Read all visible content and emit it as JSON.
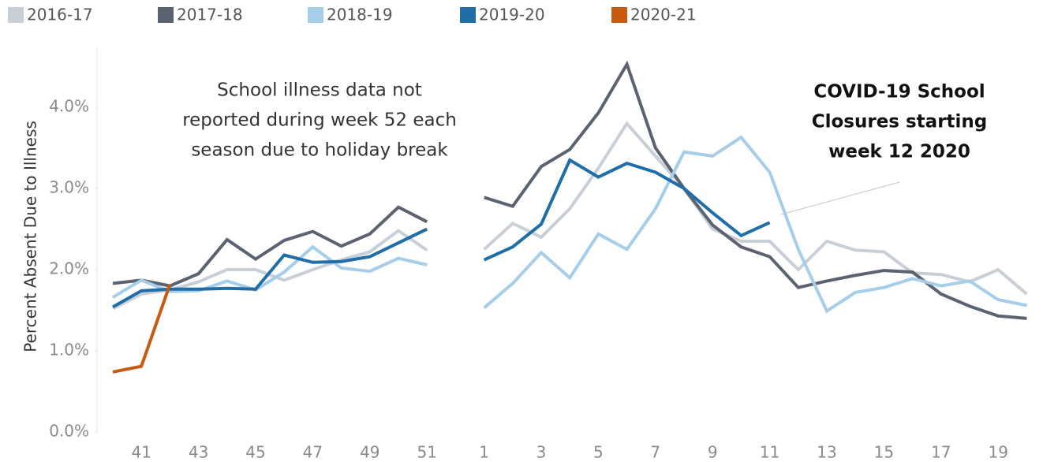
{
  "chart_data": {
    "type": "line",
    "y_label": "Percent Absent Due to Illness",
    "annotations": [
      {
        "lines": [
          "School illness data not",
          "reported during week 52 each",
          "season due to holiday break"
        ]
      },
      {
        "lines": [
          "COVID-19 School",
          "Closures starting",
          "week 12 2020"
        ]
      }
    ],
    "categories": [
      null,
      "41",
      null,
      "43",
      null,
      "45",
      null,
      "47",
      null,
      "49",
      null,
      "51",
      null,
      "1",
      null,
      "3",
      null,
      "5",
      null,
      "7",
      null,
      "9",
      null,
      "11",
      null,
      "13",
      null,
      "15",
      null,
      "17",
      null,
      "19",
      null
    ],
    "series": [
      {
        "name": "2016-17",
        "color": "#c9cfd6",
        "values": [
          1.52,
          1.7,
          1.75,
          1.85,
          2.0,
          2.0,
          1.87,
          2.0,
          2.12,
          2.22,
          2.48,
          2.24,
          null,
          2.25,
          2.57,
          2.4,
          2.75,
          3.25,
          3.8,
          3.4,
          3.0,
          2.5,
          2.35,
          2.35,
          2.0,
          2.35,
          2.24,
          2.22,
          1.96,
          1.94,
          1.85,
          2.0,
          1.7
        ]
      },
      {
        "name": "2017-18",
        "color": "#5b6270",
        "values": [
          1.83,
          1.87,
          1.8,
          1.95,
          2.37,
          2.13,
          2.36,
          2.47,
          2.29,
          2.44,
          2.77,
          2.59,
          null,
          2.89,
          2.78,
          3.27,
          3.48,
          3.93,
          4.53,
          3.5,
          3.0,
          2.55,
          2.28,
          2.16,
          1.78,
          1.86,
          1.93,
          1.99,
          1.97,
          1.7,
          1.55,
          1.43,
          1.4
        ]
      },
      {
        "name": "2018-19",
        "color": "#a6cde9",
        "values": [
          1.66,
          1.87,
          1.73,
          1.74,
          1.86,
          1.75,
          1.97,
          2.28,
          2.02,
          1.98,
          2.14,
          2.06,
          null,
          1.53,
          1.83,
          2.21,
          1.9,
          2.44,
          2.25,
          2.75,
          3.45,
          3.4,
          3.63,
          3.2,
          2.25,
          1.49,
          1.72,
          1.78,
          1.89,
          1.8,
          1.86,
          1.63,
          1.56
        ]
      },
      {
        "name": "2019-20",
        "color": "#1f6ea8",
        "values": [
          1.54,
          1.74,
          1.76,
          1.76,
          1.77,
          1.76,
          2.18,
          2.09,
          2.1,
          2.16,
          2.33,
          2.5,
          null,
          2.12,
          2.28,
          2.56,
          3.35,
          3.14,
          3.31,
          3.2,
          3.0,
          2.7,
          2.42,
          2.58,
          null,
          null,
          null,
          null,
          null,
          null,
          null,
          null,
          null
        ]
      },
      {
        "name": "2020-21",
        "color": "#c85a12",
        "values": [
          0.74,
          0.81,
          1.82,
          null,
          null,
          null,
          null,
          null,
          null,
          null,
          null,
          null,
          null,
          null,
          null,
          null,
          null,
          null,
          null,
          null,
          null,
          null,
          null,
          null,
          null,
          null,
          null,
          null,
          null,
          null,
          null,
          null,
          null
        ]
      }
    ],
    "ylim": [
      0,
      4.7
    ],
    "yticks": [
      {
        "value": 0,
        "label": "0.0%"
      },
      {
        "value": 1,
        "label": "1.0%"
      },
      {
        "value": 2,
        "label": "2.0%"
      },
      {
        "value": 3,
        "label": "3.0%"
      },
      {
        "value": 4,
        "label": "4.0%"
      }
    ],
    "grid": false
  }
}
